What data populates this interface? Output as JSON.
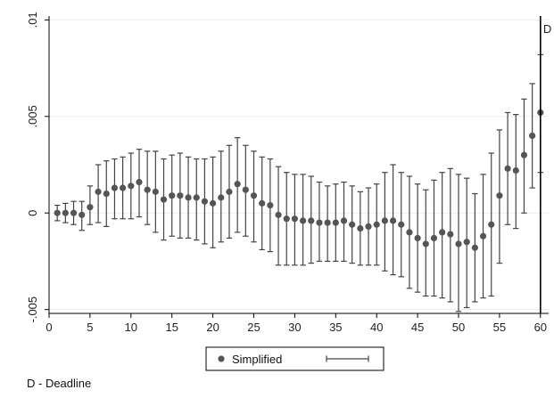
{
  "chart_data": {
    "type": "scatter",
    "subtype": "point-with-error-bars",
    "x": [
      1,
      2,
      3,
      4,
      5,
      6,
      7,
      8,
      9,
      10,
      11,
      12,
      13,
      14,
      15,
      16,
      17,
      18,
      19,
      20,
      21,
      22,
      23,
      24,
      25,
      26,
      27,
      28,
      29,
      30,
      31,
      32,
      33,
      34,
      35,
      36,
      37,
      38,
      39,
      40,
      41,
      42,
      43,
      44,
      45,
      46,
      47,
      48,
      49,
      50,
      51,
      52,
      53,
      54,
      55,
      56,
      57,
      58,
      59,
      60
    ],
    "series": [
      {
        "name": "Simplified",
        "y": [
          0.0,
          0.0,
          0.0,
          -0.0001,
          0.0003,
          0.0011,
          0.001,
          0.0013,
          0.0013,
          0.0014,
          0.0016,
          0.0012,
          0.0011,
          0.0007,
          0.0009,
          0.0009,
          0.0008,
          0.0008,
          0.0006,
          0.0005,
          0.0008,
          0.0011,
          0.0015,
          0.0012,
          0.0009,
          0.0005,
          0.0004,
          -0.0001,
          -0.0003,
          -0.0003,
          -0.0004,
          -0.0004,
          -0.0005,
          -0.0005,
          -0.0005,
          -0.0004,
          -0.0006,
          -0.0008,
          -0.0007,
          -0.0006,
          -0.0004,
          -0.0004,
          -0.0006,
          -0.001,
          -0.0013,
          -0.0016,
          -0.0013,
          -0.001,
          -0.0011,
          -0.0016,
          -0.0015,
          -0.0018,
          -0.0012,
          -0.0006,
          0.0009,
          0.0023,
          0.0022,
          0.003,
          0.004,
          0.0052
        ],
        "lower": [
          -0.0004,
          -0.0005,
          -0.0006,
          -0.0009,
          -0.0006,
          -0.0005,
          -0.0007,
          -0.0003,
          -0.0003,
          -0.0003,
          -0.0002,
          -0.0006,
          -0.001,
          -0.0014,
          -0.0012,
          -0.0013,
          -0.0013,
          -0.0014,
          -0.0016,
          -0.0018,
          -0.0015,
          -0.0013,
          -0.001,
          -0.0012,
          -0.0015,
          -0.0019,
          -0.002,
          -0.0027,
          -0.0027,
          -0.0027,
          -0.0027,
          -0.0026,
          -0.0025,
          -0.0025,
          -0.0025,
          -0.0025,
          -0.0026,
          -0.0027,
          -0.0027,
          -0.0027,
          -0.003,
          -0.0032,
          -0.0033,
          -0.0039,
          -0.0041,
          -0.0043,
          -0.0043,
          -0.0044,
          -0.0046,
          -0.0051,
          -0.0049,
          -0.0046,
          -0.0044,
          -0.0043,
          -0.0026,
          -0.0006,
          -0.0008,
          0.0,
          0.0013,
          0.0021
        ],
        "upper": [
          0.0004,
          0.0005,
          0.0006,
          0.0006,
          0.0014,
          0.0025,
          0.0027,
          0.0028,
          0.0029,
          0.0031,
          0.0033,
          0.0032,
          0.0032,
          0.0028,
          0.003,
          0.0031,
          0.0029,
          0.0028,
          0.0028,
          0.0029,
          0.0032,
          0.0035,
          0.0039,
          0.0035,
          0.0032,
          0.0029,
          0.0028,
          0.0024,
          0.0021,
          0.002,
          0.002,
          0.0019,
          0.0016,
          0.0014,
          0.0015,
          0.0016,
          0.0014,
          0.0011,
          0.0013,
          0.0015,
          0.0021,
          0.0025,
          0.0021,
          0.0019,
          0.0015,
          0.0012,
          0.0017,
          0.0021,
          0.0023,
          0.002,
          0.0018,
          0.001,
          0.002,
          0.0031,
          0.0043,
          0.0052,
          0.0051,
          0.0059,
          0.0067,
          0.0082
        ]
      }
    ],
    "xlim": [
      0,
      61
    ],
    "ylim": [
      -0.0052,
      0.0102
    ],
    "xticks": [
      0,
      5,
      10,
      15,
      20,
      25,
      30,
      35,
      40,
      45,
      50,
      55,
      60
    ],
    "xtick_labels": [
      "0",
      "5",
      "10",
      "15",
      "20",
      "25",
      "30",
      "35",
      "40",
      "45",
      "50",
      "55",
      "60"
    ],
    "yticks": [
      -0.005,
      0,
      0.005,
      0.01
    ],
    "ytick_labels": [
      "-.005",
      "0",
      ".005",
      ".01"
    ],
    "grid": true,
    "vline": {
      "x": 60,
      "label": "D"
    },
    "legend": {
      "position": "bottom-center",
      "label": "Simplified"
    },
    "title": "",
    "xlabel": "",
    "ylabel": "",
    "note": "D - Deadline",
    "colors": {
      "marker": "#555555",
      "bar": "#444444",
      "grid": "#e8eef0",
      "vline": "#000000"
    }
  }
}
